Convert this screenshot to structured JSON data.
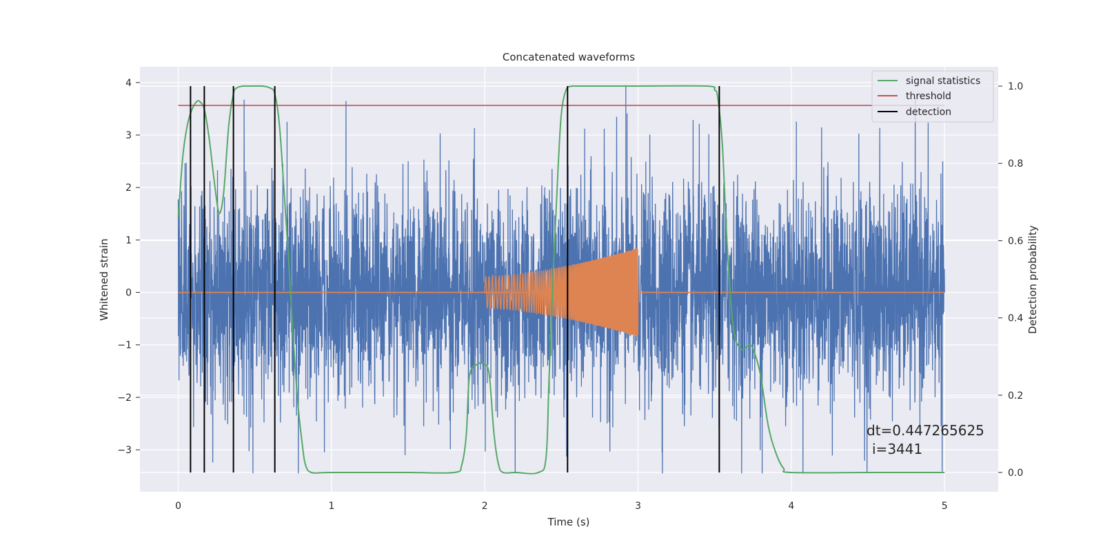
{
  "chart_data": {
    "type": "line",
    "title": "Concatenated waveforms",
    "xlabel": "Time (s)",
    "ylabel": "Whitened strain",
    "y2label": "Detection probability",
    "xlim": [
      -0.25,
      5.35
    ],
    "ylim": [
      -3.8,
      4.3
    ],
    "y2lim": [
      -0.05,
      1.05
    ],
    "xticks": [
      0,
      1,
      2,
      3,
      4,
      5
    ],
    "yticks": [
      -3,
      -2,
      -1,
      0,
      1,
      2,
      3,
      4
    ],
    "y2ticks": [
      0.0,
      0.2,
      0.4,
      0.6,
      0.8,
      1.0
    ],
    "xtick_labels": [
      "0",
      "1",
      "2",
      "3",
      "4",
      "5"
    ],
    "ytick_labels": [
      "−3",
      "−2",
      "−1",
      "0",
      "1",
      "2",
      "3",
      "4"
    ],
    "y2tick_labels": [
      "0.0",
      "0.2",
      "0.4",
      "0.6",
      "0.8",
      "1.0"
    ],
    "grid": true,
    "legend_position": "upper right",
    "legend": [
      {
        "label": "signal statistics",
        "color": "#55a868",
        "kind": "line"
      },
      {
        "label": "threshold",
        "color": "#c44e52",
        "kind": "line"
      },
      {
        "label": "detection",
        "color": "#000000",
        "kind": "line"
      }
    ],
    "series": [
      {
        "id": "strain",
        "axis": "left",
        "color": "#4c72b0",
        "x_range": [
          0,
          5
        ],
        "typical_amplitude": 1.0,
        "peak_max": 3.95,
        "peak_min": -3.45
      },
      {
        "id": "injected",
        "axis": "left",
        "color": "#dd8452",
        "x_start": 2.0,
        "x_end": 3.0,
        "amplitude_start": 0.3,
        "amplitude_end": 0.85
      },
      {
        "id": "signal statistics",
        "axis": "right",
        "color": "#55a868",
        "x": [
          0.0,
          0.03,
          0.06,
          0.09,
          0.12,
          0.14,
          0.17,
          0.2,
          0.23,
          0.26,
          0.28,
          0.3,
          0.33,
          0.36,
          0.38,
          0.42,
          0.47,
          0.55,
          0.6,
          0.63,
          0.66,
          0.69,
          0.72,
          0.75,
          0.78,
          0.81,
          0.83,
          0.87,
          1.0,
          1.5,
          1.8,
          1.85,
          1.88,
          1.9,
          1.95,
          2.0,
          2.03,
          2.06,
          2.09,
          2.12,
          2.2,
          2.35,
          2.4,
          2.42,
          2.45,
          2.48,
          2.5,
          2.53,
          2.57,
          2.62,
          3.0,
          3.45,
          3.5,
          3.52,
          3.55,
          3.58,
          3.62,
          3.67,
          3.73,
          3.76,
          3.8,
          3.85,
          3.9,
          3.95,
          4.0,
          4.5,
          5.0
        ],
        "y": [
          0.66,
          0.82,
          0.9,
          0.94,
          0.96,
          0.96,
          0.94,
          0.87,
          0.77,
          0.68,
          0.68,
          0.74,
          0.9,
          0.98,
          0.995,
          1.0,
          1.0,
          1.0,
          0.995,
          0.98,
          0.9,
          0.73,
          0.55,
          0.35,
          0.18,
          0.07,
          0.02,
          0.0,
          0.0,
          0.0,
          0.0,
          0.02,
          0.1,
          0.25,
          0.28,
          0.28,
          0.25,
          0.1,
          0.02,
          0.0,
          0.0,
          0.0,
          0.04,
          0.25,
          0.55,
          0.8,
          0.93,
          0.99,
          1.0,
          1.0,
          1.0,
          1.0,
          0.99,
          0.97,
          0.85,
          0.6,
          0.38,
          0.32,
          0.33,
          0.31,
          0.25,
          0.12,
          0.05,
          0.01,
          0.0,
          0.0,
          0.0
        ]
      },
      {
        "id": "threshold",
        "axis": "right",
        "color": "#c44e52",
        "x": [
          0,
          5
        ],
        "y": [
          0.95,
          0.95
        ]
      }
    ],
    "detections": [
      0.08,
      0.17,
      0.36,
      0.63,
      2.54,
      3.53
    ],
    "annotation": {
      "line1": "dt=0.447265625",
      "line2": "i=3441"
    }
  }
}
